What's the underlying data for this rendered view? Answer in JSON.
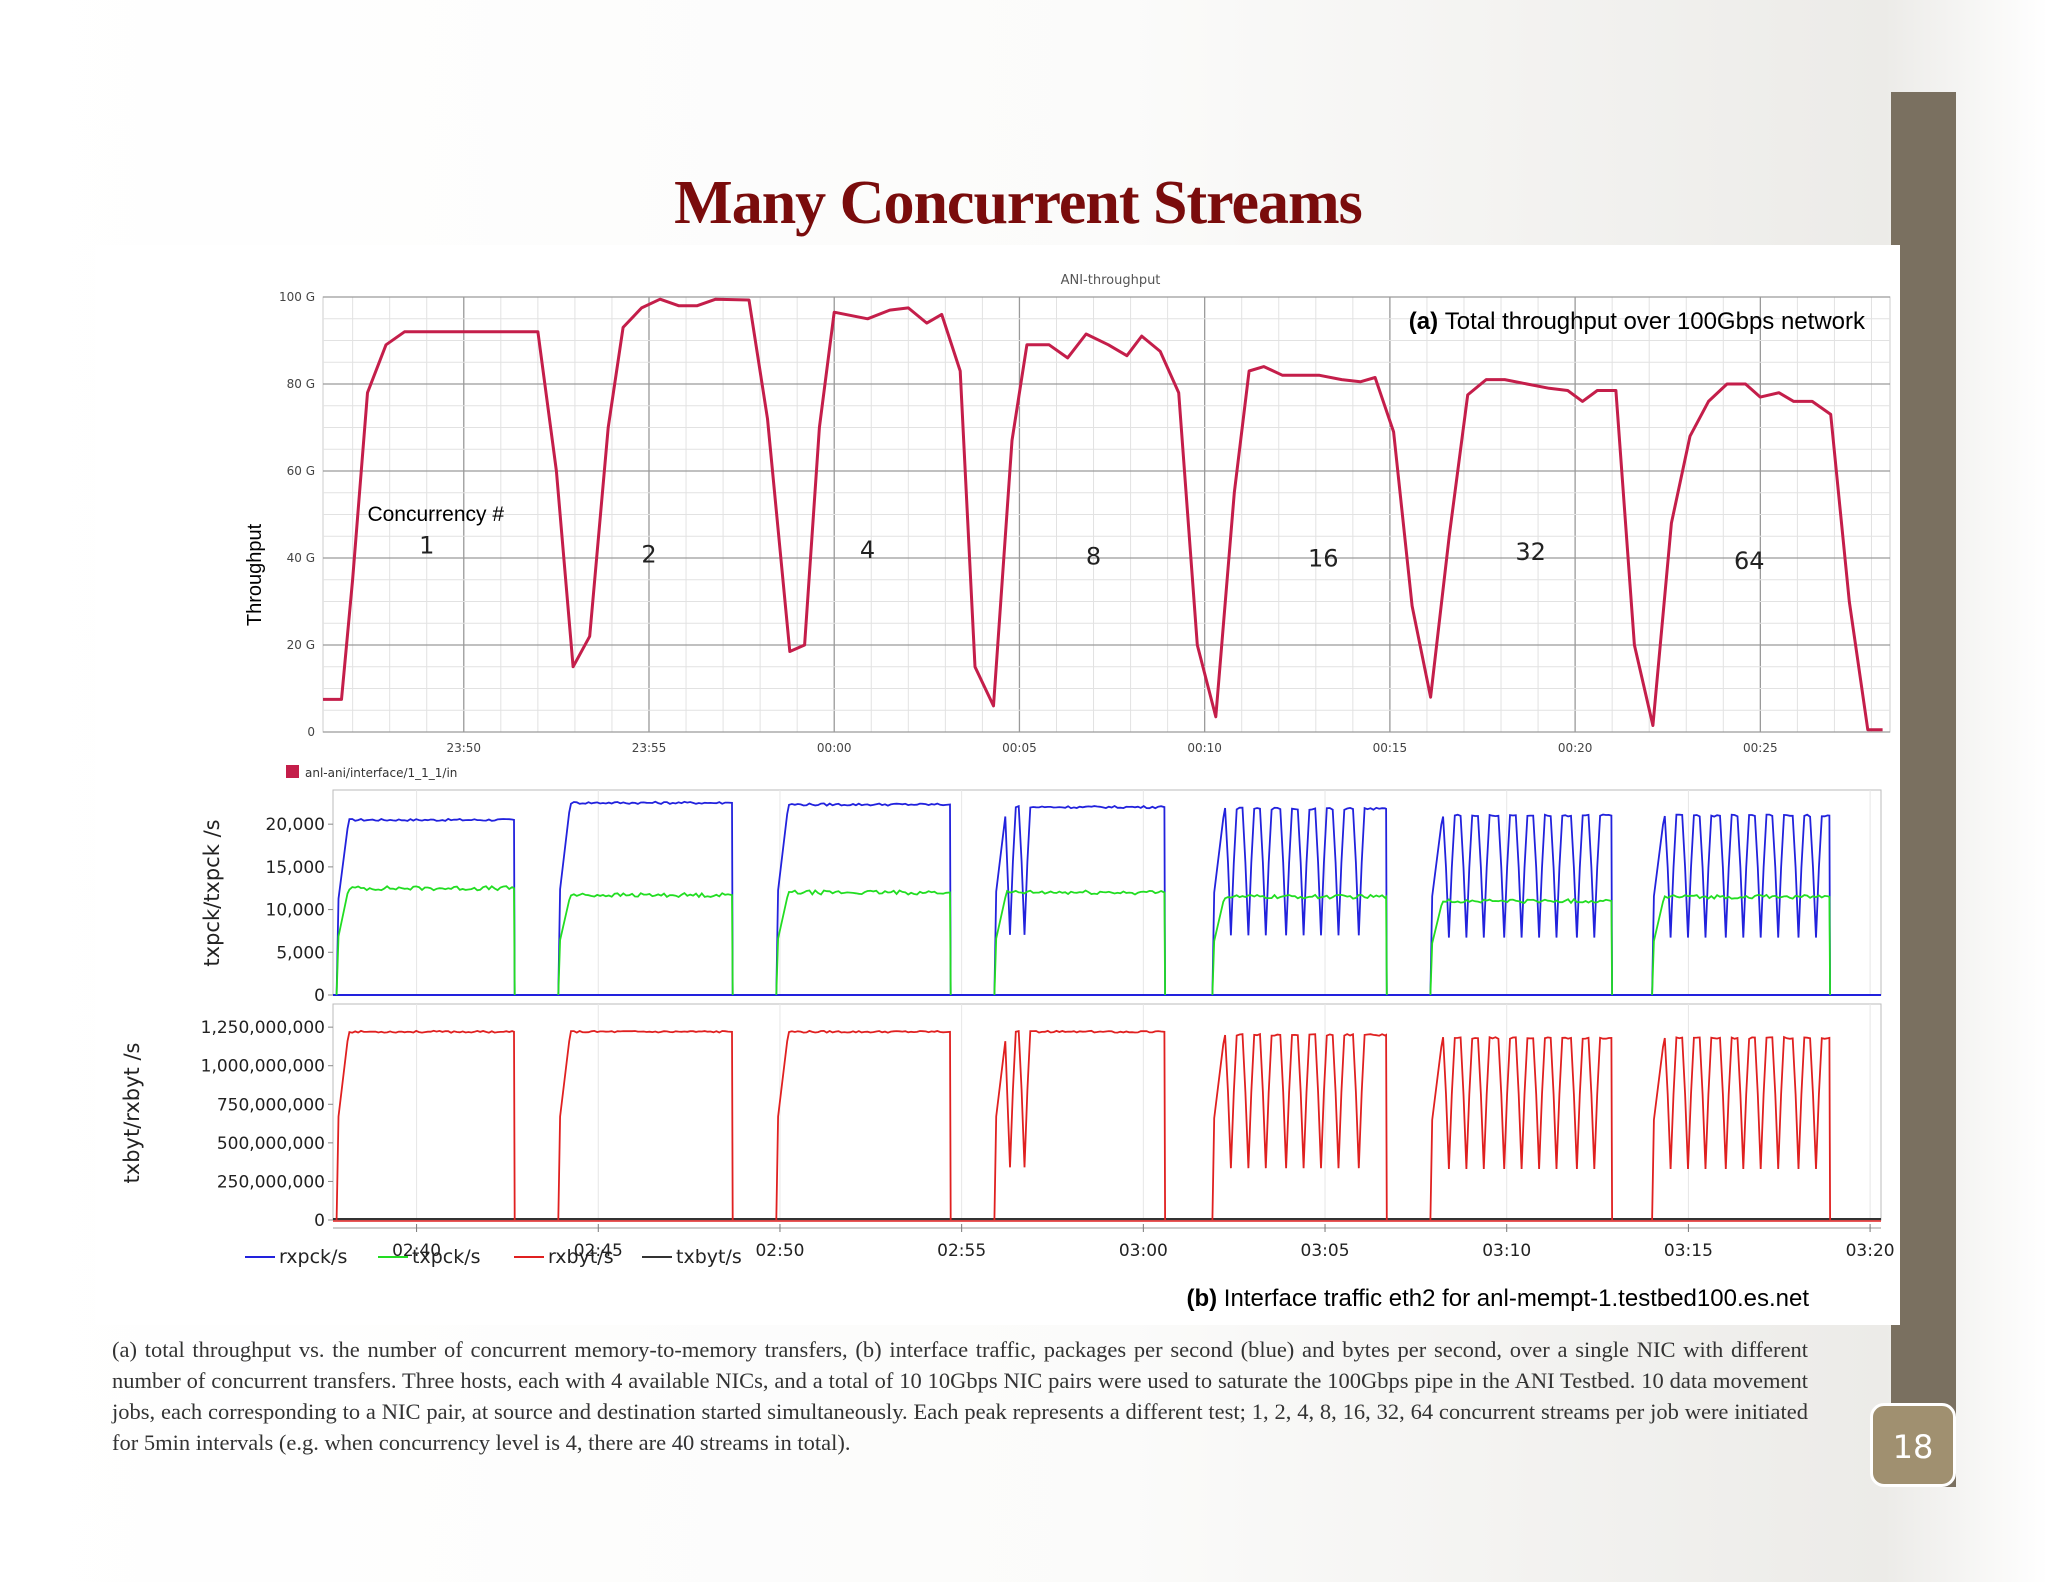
{
  "slide": {
    "title": "Many Concurrent Streams",
    "page_number": "18",
    "caption": "(a) total throughput vs. the number of concurrent memory-to-memory transfers, (b) interface traffic, packages per second (blue) and bytes per second, over a single NIC with different number of concurrent transfers.  Three hosts, each with 4 available NICs, and a total of 10 10Gbps NIC pairs were used to saturate the 100Gbps pipe in the ANI Testbed. 10 data movement jobs, each corresponding to a NIC pair, at source and destination started simultaneously. Each peak represents a different test; 1, 2, 4, 8, 16, 32, 64 concurrent streams per job were initiated for 5min intervals (e.g. when concurrency level is 4, there are 40 streams in total)."
  },
  "colors": {
    "title": "#7a0c0c",
    "throughput_line": "#c41e4a",
    "rxpck": "#2222dd",
    "txpck": "#22dd22",
    "rxbyt": "#e02020",
    "txbyt": "#333333",
    "side_bar": "#7a7060"
  },
  "chart_data": [
    {
      "type": "line",
      "title": "ANI-throughput",
      "annotation_label": "(a)",
      "annotation_text": "Total throughput over 100Gbps network",
      "ylabel": "Throughput",
      "yticks": [
        "0",
        "20 G",
        "40 G",
        "60 G",
        "80 G",
        "100 G"
      ],
      "ylim": [
        0,
        100
      ],
      "xticks": [
        "23:50",
        "23:55",
        "00:00",
        "00:05",
        "00:10",
        "00:15",
        "00:20",
        "00:25"
      ],
      "xtick_minutes": [
        0,
        5,
        10,
        15,
        20,
        25,
        30,
        35
      ],
      "xlim": [
        -3.8,
        38.5
      ],
      "concurrency_title": "Concurrency #",
      "concurrency_labels": [
        {
          "label": "1",
          "x": -1,
          "y": 41
        },
        {
          "label": "2",
          "x": 5,
          "y": 39
        },
        {
          "label": "4",
          "x": 10.9,
          "y": 40
        },
        {
          "label": "8",
          "x": 17,
          "y": 38.5
        },
        {
          "label": "16",
          "x": 23.2,
          "y": 38
        },
        {
          "label": "32",
          "x": 28.8,
          "y": 39.5
        },
        {
          "label": "64",
          "x": 34.7,
          "y": 37.5
        }
      ],
      "legend": [
        "anl-ani/interface/1_1_1/in"
      ],
      "grid": true,
      "series": [
        {
          "name": "anl-ani/interface/1_1_1/in",
          "points": [
            [
              -3.8,
              7.5
            ],
            [
              -3.3,
              7.5
            ],
            [
              -3.0,
              35
            ],
            [
              -2.6,
              78
            ],
            [
              -2.1,
              89
            ],
            [
              -1.6,
              92
            ],
            [
              -0.5,
              92
            ],
            [
              0.5,
              92
            ],
            [
              1.5,
              92
            ],
            [
              2.0,
              92
            ],
            [
              2.5,
              60
            ],
            [
              2.95,
              15
            ],
            [
              3.4,
              22
            ],
            [
              3.9,
              70
            ],
            [
              4.3,
              93
            ],
            [
              4.8,
              97.5
            ],
            [
              5.3,
              99.5
            ],
            [
              5.8,
              98
            ],
            [
              6.3,
              98
            ],
            [
              6.8,
              99.5
            ],
            [
              7.7,
              99.3
            ],
            [
              8.2,
              72
            ],
            [
              8.8,
              18.5
            ],
            [
              9.2,
              20
            ],
            [
              9.6,
              70
            ],
            [
              10.0,
              96.5
            ],
            [
              10.9,
              95
            ],
            [
              11.5,
              97
            ],
            [
              12.0,
              97.5
            ],
            [
              12.5,
              94
            ],
            [
              12.9,
              96
            ],
            [
              13.4,
              83
            ],
            [
              13.8,
              15
            ],
            [
              14.3,
              6
            ],
            [
              14.8,
              67
            ],
            [
              15.2,
              89
            ],
            [
              15.8,
              89
            ],
            [
              16.3,
              86
            ],
            [
              16.8,
              91.5
            ],
            [
              17.4,
              89
            ],
            [
              17.9,
              86.5
            ],
            [
              18.3,
              91
            ],
            [
              18.8,
              87.5
            ],
            [
              19.3,
              78
            ],
            [
              19.8,
              20
            ],
            [
              20.3,
              3.5
            ],
            [
              20.8,
              55
            ],
            [
              21.2,
              83
            ],
            [
              21.6,
              84
            ],
            [
              22.1,
              82
            ],
            [
              23.1,
              82
            ],
            [
              23.7,
              81
            ],
            [
              24.2,
              80.5
            ],
            [
              24.6,
              81.5
            ],
            [
              25.1,
              69
            ],
            [
              25.6,
              29
            ],
            [
              26.1,
              8
            ],
            [
              26.6,
              45
            ],
            [
              27.1,
              77.5
            ],
            [
              27.6,
              81
            ],
            [
              28.1,
              81
            ],
            [
              28.7,
              80
            ],
            [
              29.3,
              79
            ],
            [
              29.8,
              78.5
            ],
            [
              30.2,
              76
            ],
            [
              30.6,
              78.5
            ],
            [
              31.1,
              78.5
            ],
            [
              31.6,
              20
            ],
            [
              32.1,
              1.5
            ],
            [
              32.6,
              48
            ],
            [
              33.1,
              68
            ],
            [
              33.6,
              76
            ],
            [
              34.1,
              80
            ],
            [
              34.6,
              80
            ],
            [
              35.0,
              77
            ],
            [
              35.5,
              78
            ],
            [
              35.9,
              76
            ],
            [
              36.4,
              76
            ],
            [
              36.9,
              73
            ],
            [
              37.4,
              30
            ],
            [
              37.9,
              0.5
            ],
            [
              38.3,
              0.5
            ]
          ]
        }
      ]
    },
    {
      "type": "line",
      "annotation_label": "(b)",
      "annotation_text": "Interface traffic eth2 for anl-mempt-1.testbed100.es.net",
      "ylabel": "txpck/txpck /s",
      "yticks": [
        "0",
        "5,000",
        "10,000",
        "15,000",
        "20,000"
      ],
      "ylim": [
        0,
        24000
      ],
      "xticks": [
        "02:40",
        "02:45",
        "02:50",
        "02:55",
        "03:00",
        "03:05",
        "03:10",
        "03:15",
        "03:20"
      ],
      "xlim": [
        -2.3,
        40.3
      ],
      "series": [
        {
          "name": "rxpck/s",
          "segments": [
            {
              "start": -2.2,
              "end": 2.7,
              "level": 20500
            },
            {
              "start": 3.9,
              "end": 8.7,
              "level": 22500
            },
            {
              "start": 9.9,
              "end": 14.7,
              "level": 22300
            },
            {
              "start": 15.9,
              "end": 20.6,
              "level": 22000,
              "dips": [
                16.3,
                16.7
              ]
            },
            {
              "start": 21.9,
              "end": 26.7,
              "level": 21800,
              "dips": [
                22.4,
                22.9,
                23.4,
                23.9,
                24.4,
                24.9,
                25.4,
                25.9
              ]
            },
            {
              "start": 27.9,
              "end": 32.9,
              "level": 21000,
              "dips": [
                28.4,
                28.9,
                29.4,
                29.9,
                30.4,
                30.9,
                31.4,
                31.9,
                32.4
              ]
            },
            {
              "start": 34.0,
              "end": 38.9,
              "level": 21000,
              "dips": [
                34.5,
                35.0,
                35.5,
                36.0,
                36.5,
                37.0,
                37.5,
                38.0,
                38.5
              ]
            }
          ]
        },
        {
          "name": "txpck/s",
          "segments": [
            {
              "start": -2.2,
              "end": 2.7,
              "level": 12500
            },
            {
              "start": 3.9,
              "end": 8.7,
              "level": 11700
            },
            {
              "start": 9.9,
              "end": 14.7,
              "level": 12000
            },
            {
              "start": 15.9,
              "end": 20.6,
              "level": 12000
            },
            {
              "start": 21.9,
              "end": 26.7,
              "level": 11500
            },
            {
              "start": 27.9,
              "end": 32.9,
              "level": 11000
            },
            {
              "start": 34.0,
              "end": 38.9,
              "level": 11500
            }
          ]
        }
      ]
    },
    {
      "type": "line",
      "ylabel": "txbyt/rxbyt /s",
      "yticks": [
        "0",
        "250,000,000",
        "500,000,000",
        "750,000,000",
        "1,000,000,000",
        "1,250,000,000"
      ],
      "ylim": [
        0,
        1400000000
      ],
      "xticks": [
        "02:40",
        "02:45",
        "02:50",
        "02:55",
        "03:00",
        "03:05",
        "03:10",
        "03:15",
        "03:20"
      ],
      "xlim": [
        -2.3,
        40.3
      ],
      "legend": [
        "rxpck/s",
        "txpck/s",
        "rxbyt/s",
        "txbyt/s"
      ],
      "series": [
        {
          "name": "rxbyt/s",
          "segments": [
            {
              "start": -2.2,
              "end": 2.7,
              "level": 1220000000
            },
            {
              "start": 3.9,
              "end": 8.7,
              "level": 1220000000
            },
            {
              "start": 9.9,
              "end": 14.7,
              "level": 1220000000
            },
            {
              "start": 15.9,
              "end": 20.6,
              "level": 1220000000,
              "dips": [
                16.3,
                16.7
              ]
            },
            {
              "start": 21.9,
              "end": 26.7,
              "level": 1200000000,
              "dips": [
                22.4,
                22.9,
                23.4,
                23.9,
                24.4,
                24.9,
                25.4,
                25.9
              ]
            },
            {
              "start": 27.9,
              "end": 32.9,
              "level": 1180000000,
              "dips": [
                28.4,
                28.9,
                29.4,
                29.9,
                30.4,
                30.9,
                31.4,
                31.9,
                32.4
              ]
            },
            {
              "start": 34.0,
              "end": 38.9,
              "level": 1180000000,
              "dips": [
                34.5,
                35.0,
                35.5,
                36.0,
                36.5,
                37.0,
                37.5,
                38.0,
                38.5
              ]
            }
          ]
        },
        {
          "name": "txbyt/s",
          "segments": []
        }
      ]
    }
  ]
}
